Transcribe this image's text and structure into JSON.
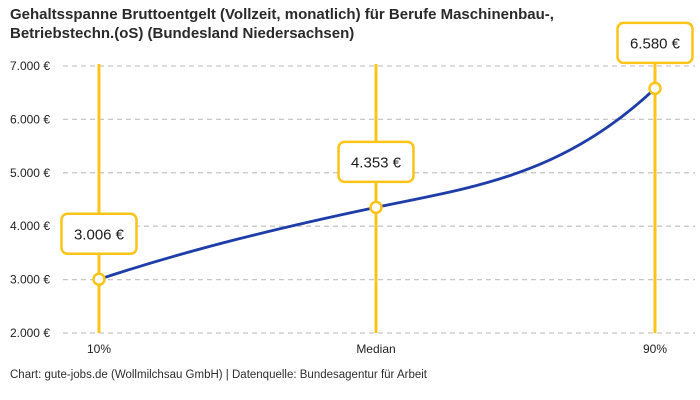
{
  "header": {
    "title_line1": "Gehaltsspanne Bruttoentgelt (Vollzeit, monatlich) für Berufe Maschinenbau-,",
    "title_line2": "Betriebstechn.(oS) (Bundesland Niedersachsen)"
  },
  "footer": {
    "credit": "Chart: gute-jobs.de (Wollmilchsau GmbH) | Datenquelle: Bundesagentur für Arbeit"
  },
  "chart_data": {
    "type": "line",
    "title": "Gehaltsspanne Bruttoentgelt (Vollzeit, monatlich) für Berufe Maschinenbau-, Betriebstechn.(oS) (Bundesland Niedersachsen)",
    "categories": [
      "10%",
      "Median",
      "90%"
    ],
    "series": [
      {
        "name": "Bruttoentgelt",
        "values": [
          3006,
          4353,
          6580
        ]
      }
    ],
    "value_labels": [
      "3.006 €",
      "4.353 €",
      "6.580 €"
    ],
    "ylim": [
      2000,
      7000
    ],
    "y_ticks": [
      2000,
      3000,
      4000,
      5000,
      6000,
      7000
    ],
    "y_tick_labels": [
      "2.000 €",
      "3.000 €",
      "4.000 €",
      "5.000 €",
      "6.000 €",
      "7.000 €"
    ],
    "xlabel": "",
    "ylabel": "",
    "grid": "horizontal-dashed",
    "legend": "none",
    "colors": {
      "accent": "#FAC419",
      "line": "#1E3DA8",
      "grid": "#C8C8C8",
      "tick_text": "#1F1F1F",
      "label_text": "#1D1D1D",
      "box_fill": "#FFFFFF"
    }
  }
}
